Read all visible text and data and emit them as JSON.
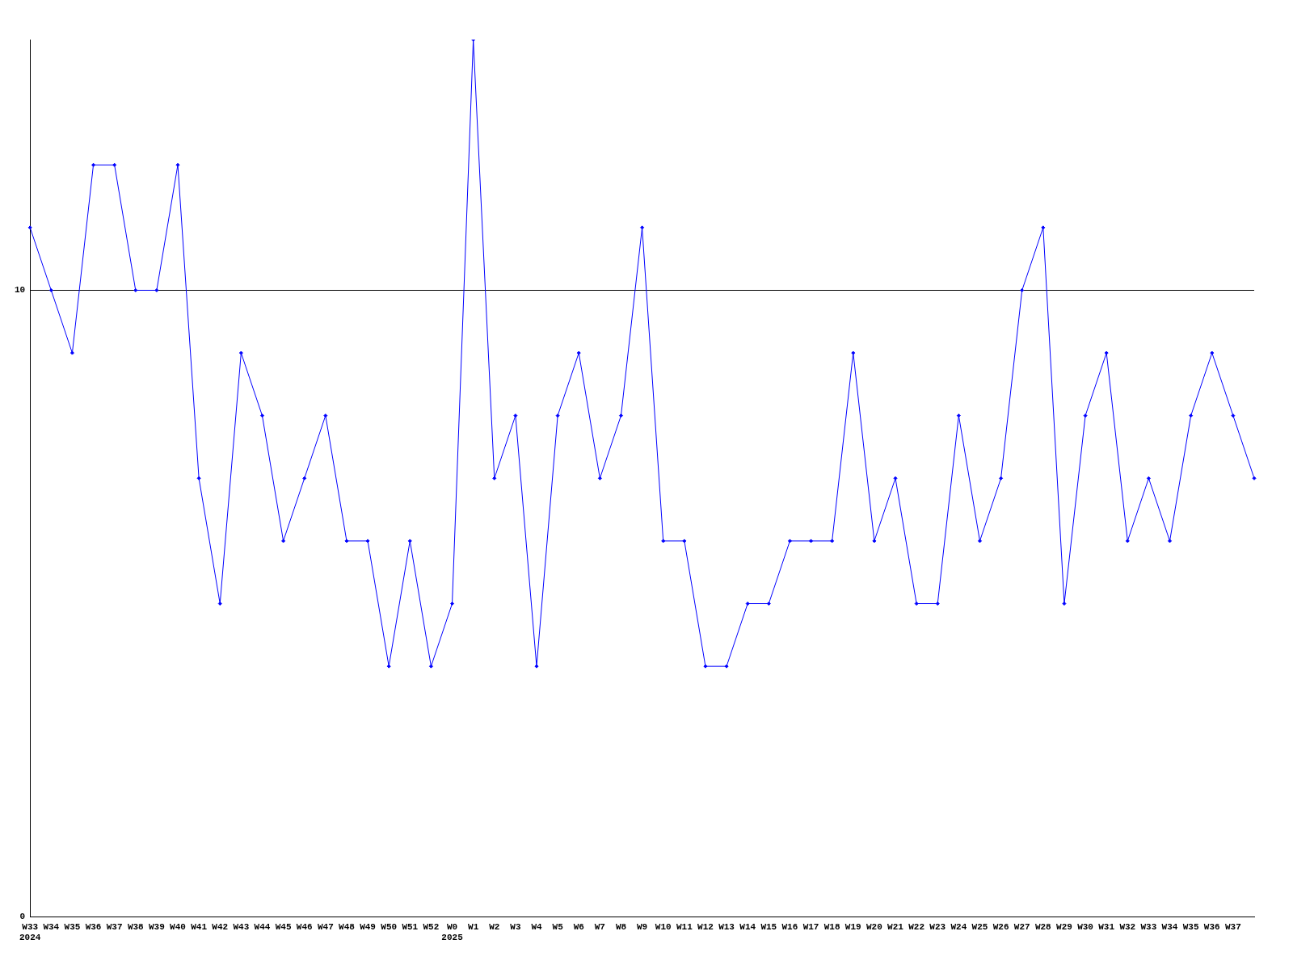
{
  "chart_data": {
    "type": "line",
    "categories": [
      "W33\n2024",
      "W34",
      "W35",
      "W36",
      "W37",
      "W38",
      "W39",
      "W40",
      "W41",
      "W42",
      "W43",
      "W44",
      "W45",
      "W46",
      "W47",
      "W48",
      "W49",
      "W50",
      "W51",
      "W52",
      "W0\n2025",
      "W1",
      "W2",
      "W3",
      "W4",
      "W5",
      "W6",
      "W7",
      "W8",
      "W9",
      "W10",
      "W11",
      "W12",
      "W13",
      "W14",
      "W15",
      "W16",
      "W17",
      "W18",
      "W19",
      "W20",
      "W21",
      "W22",
      "W23",
      "W24",
      "W25",
      "W26",
      "W27",
      "W28",
      "W29",
      "W30",
      "W31",
      "W32",
      "W33",
      "W34",
      "W35",
      "W36",
      "W37",
      null
    ],
    "series": [
      {
        "color": "#0000ff",
        "values": [
          11,
          10,
          9,
          12,
          12,
          10,
          10,
          12,
          7,
          5,
          9,
          8,
          6,
          7,
          8,
          6,
          6,
          4,
          6,
          4,
          5,
          14,
          7,
          8,
          4,
          8,
          9,
          7,
          8,
          11,
          6,
          6,
          4,
          4,
          5,
          5,
          6,
          6,
          6,
          9,
          6,
          7,
          5,
          5,
          8,
          6,
          7,
          10,
          11,
          5,
          8,
          9,
          6,
          7,
          6,
          8,
          9,
          8,
          7
        ]
      }
    ],
    "ylim": [
      0,
      14
    ],
    "yticks": [
      0,
      10
    ],
    "grid": "y",
    "legend": false,
    "marker": "diamond",
    "line_style": "solid"
  }
}
